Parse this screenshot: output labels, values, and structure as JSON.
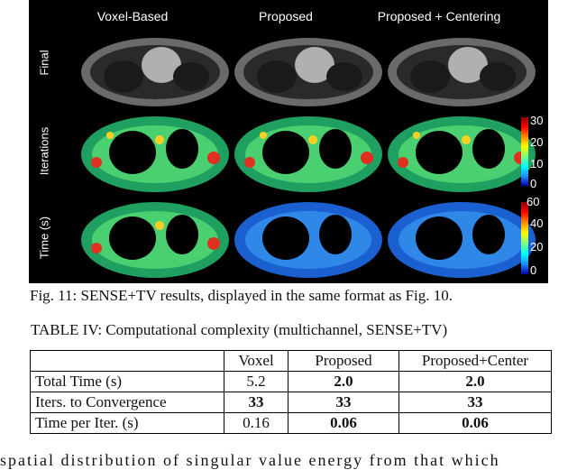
{
  "figure": {
    "column_titles": [
      "Voxel-Based",
      "Proposed",
      "Proposed + Centering"
    ],
    "row_labels": [
      "Final",
      "Iterations",
      "Time (s)"
    ],
    "colorbar_iterations": [
      "30",
      "20",
      "10",
      "0"
    ],
    "colorbar_time": [
      "60",
      "40",
      "20",
      "0"
    ]
  },
  "caption": "Fig. 11: SENSE+TV results, displayed in the same format as Fig. 10.",
  "table_title": "TABLE IV: Computational complexity (multichannel, SENSE+TV)",
  "table": {
    "headers": [
      "",
      "Voxel",
      "Proposed",
      "Proposed+Center"
    ],
    "rows": [
      {
        "label": "Total Time (s)",
        "voxel": "5.2",
        "proposed": "2.0",
        "center": "2.0"
      },
      {
        "label": "Iters. to Convergence",
        "voxel": "33",
        "proposed": "33",
        "center": "33"
      },
      {
        "label": "Time per Iter. (s)",
        "voxel": "0.16",
        "proposed": "0.06",
        "center": "0.06"
      }
    ]
  },
  "bottom_text": "spatial distribution of singular value energy from that which"
}
